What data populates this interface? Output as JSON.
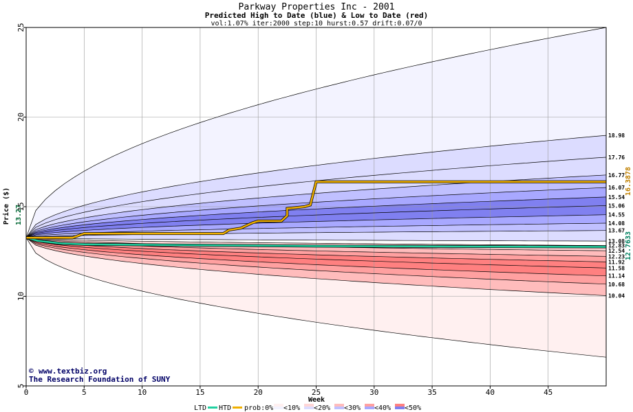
{
  "chart_data": {
    "type": "area",
    "title": "Parkway Properties Inc - 2001",
    "subtitle": "Predicted High to Date (blue) &  Low to Date (red)",
    "params": "vol:1.07% iter:2000 step:10 hurst:0.57 drift:0.07/0",
    "xlabel": "Week",
    "ylabel": "Price ($)",
    "xlim": [
      0,
      50
    ],
    "ylim": [
      5,
      25
    ],
    "x_ticks": [
      "0",
      "5",
      "10",
      "15",
      "20",
      "25",
      "30",
      "35",
      "40",
      "45"
    ],
    "y_ticks": [
      "5",
      "10",
      "15",
      "20",
      "25"
    ],
    "grid": true,
    "start_price": 13.27,
    "start_label": "13.27",
    "high_level_band_labels": [
      "18.98",
      "17.76",
      "16.77",
      "16.07",
      "15.54",
      "15.06",
      "14.55",
      "14.08",
      "13.67",
      "13.08"
    ],
    "high_level_values": [
      18.98,
      17.76,
      16.77,
      16.07,
      15.54,
      15.06,
      14.55,
      14.08,
      13.67,
      13.08
    ],
    "low_level_band_labels": [
      "12.83",
      "12.54",
      "12.23",
      "11.92",
      "11.58",
      "11.14",
      "10.68",
      "10.04"
    ],
    "low_level_values": [
      12.83,
      12.54,
      12.23,
      11.92,
      11.58,
      11.14,
      10.68,
      10.04
    ],
    "outer_high_envelope_end": 25.0,
    "outer_low_envelope_end": 6.6,
    "actual_high_to_date": {
      "label": "16.3878",
      "points": [
        [
          0,
          13.27
        ],
        [
          4,
          13.27
        ],
        [
          5,
          13.5
        ],
        [
          17,
          13.5
        ],
        [
          17.5,
          13.7
        ],
        [
          18.5,
          13.8
        ],
        [
          19.5,
          14.1
        ],
        [
          20,
          14.2
        ],
        [
          22,
          14.2
        ],
        [
          22.5,
          14.5
        ],
        [
          22.5,
          14.9
        ],
        [
          24,
          15.0
        ],
        [
          24.5,
          15.1
        ],
        [
          25,
          16.39
        ],
        [
          50,
          16.39
        ]
      ]
    },
    "actual_low_to_date": {
      "label": "12.7633",
      "points": [
        [
          0,
          13.27
        ],
        [
          1,
          13.1
        ],
        [
          3,
          12.95
        ],
        [
          5,
          12.9
        ],
        [
          15,
          12.85
        ],
        [
          25,
          12.8
        ],
        [
          50,
          12.76
        ]
      ]
    },
    "legend": {
      "ltd": "LTD",
      "htd": "HTD",
      "prob": "prob:0%",
      "items": [
        "<10%",
        "<20%",
        "<30%",
        "<40%",
        "<50%"
      ]
    },
    "colors": {
      "htd": "#f0b000",
      "ltd": "#20d0a0",
      "high_bands": [
        "#f3f3ff",
        "#dcdcff",
        "#c0c0ff",
        "#a8a8ff",
        "#8080f0"
      ],
      "low_bands": [
        "#fff0f0",
        "#ffd6d6",
        "#ffbcbc",
        "#ffa0a0",
        "#ff8080"
      ],
      "start_label": "#006633",
      "htd_label": "#c08000",
      "ltd_label": "#008060"
    }
  },
  "credit": {
    "line1": "www.textbiz.org",
    "line2": "The Research Foundation of SUNY"
  }
}
